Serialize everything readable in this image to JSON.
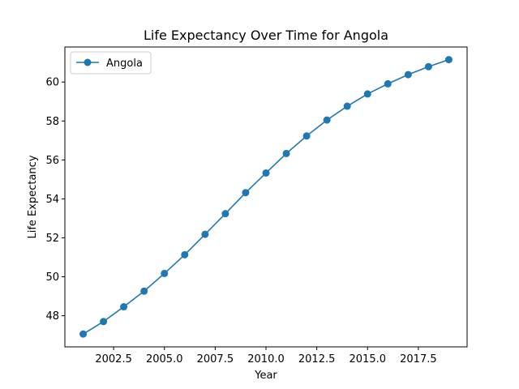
{
  "chart_data": {
    "type": "line",
    "title": "Life Expectancy Over Time for Angola",
    "xlabel": "Year",
    "ylabel": "Life Expectancy",
    "xlim": [
      2000.1,
      2019.9
    ],
    "ylim": [
      46.4,
      61.8
    ],
    "x_ticks": [
      2002.5,
      2005.0,
      2007.5,
      2010.0,
      2012.5,
      2015.0,
      2017.5
    ],
    "x_tick_labels": [
      "2002.5",
      "2005.0",
      "2007.5",
      "2010.0",
      "2012.5",
      "2015.0",
      "2017.5"
    ],
    "y_ticks": [
      48,
      50,
      52,
      54,
      56,
      58,
      60
    ],
    "y_tick_labels": [
      "48",
      "50",
      "52",
      "54",
      "56",
      "58",
      "60"
    ],
    "grid": false,
    "legend_position": "upper left",
    "series": [
      {
        "name": "Angola",
        "color": "#1f77b4",
        "marker": "circle",
        "x": [
          2001,
          2002,
          2003,
          2004,
          2005,
          2006,
          2007,
          2008,
          2009,
          2010,
          2011,
          2012,
          2013,
          2014,
          2015,
          2016,
          2017,
          2018,
          2019
        ],
        "y": [
          47.06,
          47.7,
          48.46,
          49.26,
          50.17,
          51.13,
          52.18,
          53.24,
          54.32,
          55.33,
          56.33,
          57.23,
          58.05,
          58.76,
          59.39,
          59.91,
          60.38,
          60.79,
          61.15
        ]
      }
    ]
  }
}
